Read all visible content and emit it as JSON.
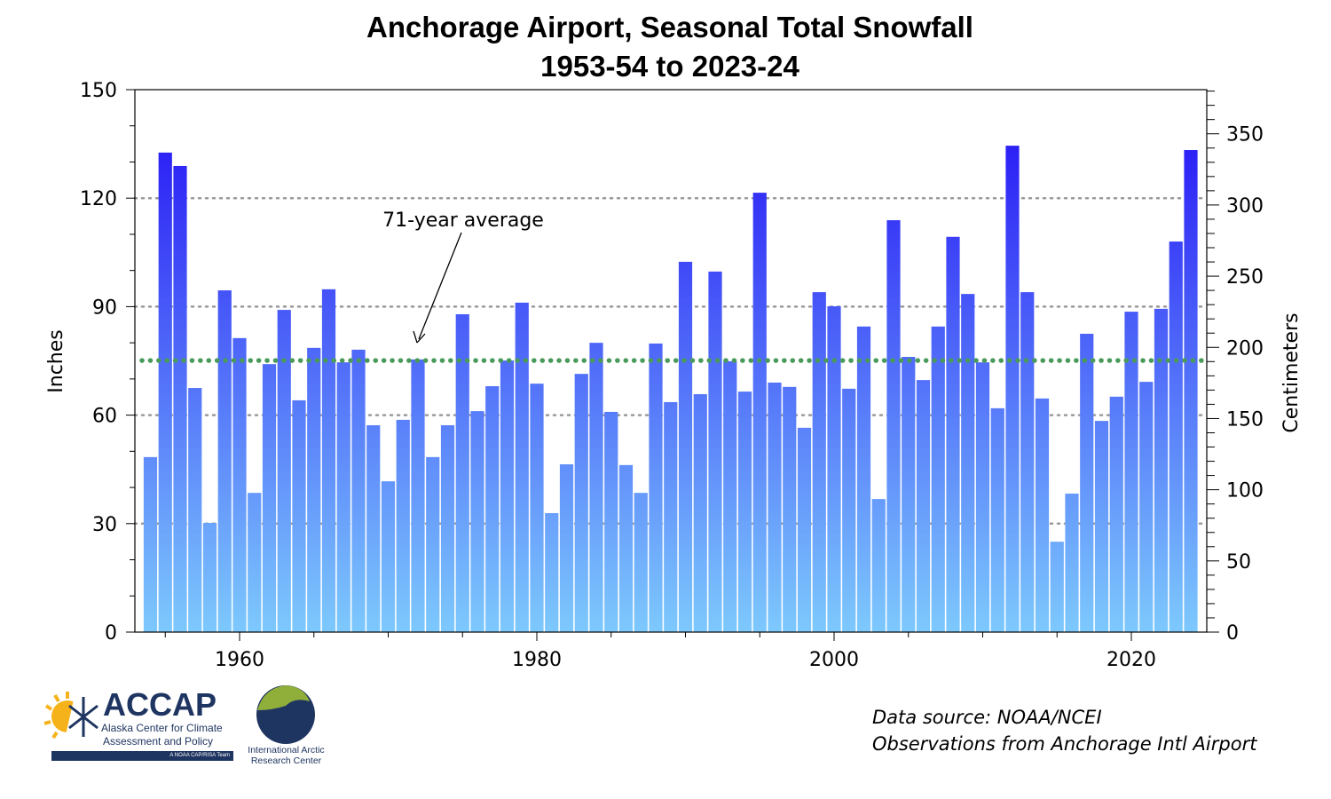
{
  "chart_data": {
    "type": "bar",
    "title": "Anchorage Airport, Seasonal Total Snowfall",
    "subtitle": "1953-54 to 2023-24",
    "ylabel": "Inches",
    "y2label": "Centimeters",
    "ylim": [
      0,
      150
    ],
    "y2lim": [
      0,
      381
    ],
    "yticks": [
      0,
      30,
      60,
      90,
      120,
      150
    ],
    "y2ticks": [
      0,
      50,
      100,
      150,
      200,
      250,
      300,
      350
    ],
    "xticks": [
      1960,
      1980,
      2000,
      2020
    ],
    "xlim": [
      1953,
      2025
    ],
    "grid": "horizontal dotted at 30, 60, 90, 120",
    "average": {
      "label": "71-year average",
      "value": 75.1,
      "color": "#4a9a5a"
    },
    "colors": {
      "bar_low": "#7dc9fd",
      "bar_high": "#2a1cf5",
      "grid": "#999999"
    },
    "x": [
      1954,
      1955,
      1956,
      1957,
      1958,
      1959,
      1960,
      1961,
      1962,
      1963,
      1964,
      1965,
      1966,
      1967,
      1968,
      1969,
      1970,
      1971,
      1972,
      1973,
      1974,
      1975,
      1976,
      1977,
      1978,
      1979,
      1980,
      1981,
      1982,
      1983,
      1984,
      1985,
      1986,
      1987,
      1988,
      1989,
      1990,
      1991,
      1992,
      1993,
      1994,
      1995,
      1996,
      1997,
      1998,
      1999,
      2000,
      2001,
      2002,
      2003,
      2004,
      2005,
      2006,
      2007,
      2008,
      2009,
      2010,
      2011,
      2012,
      2013,
      2014,
      2015,
      2016,
      2017,
      2018,
      2019,
      2020,
      2021,
      2022,
      2023,
      2024
    ],
    "values": [
      48.4,
      132.6,
      128.9,
      67.5,
      30.2,
      94.5,
      81.3,
      38.5,
      74.1,
      89.1,
      64.1,
      78.6,
      94.8,
      74.6,
      78.1,
      57.2,
      41.7,
      58.7,
      75.4,
      48.4,
      57.2,
      87.9,
      61.1,
      68.0,
      75.1,
      91.1,
      68.7,
      32.9,
      46.4,
      71.4,
      80.0,
      60.9,
      46.2,
      38.5,
      79.8,
      63.6,
      102.4,
      65.8,
      99.7,
      74.9,
      66.5,
      121.5,
      69.0,
      67.8,
      56.5,
      94.0,
      90.1,
      67.3,
      84.5,
      36.8,
      113.9,
      76.1,
      69.7,
      84.5,
      109.3,
      93.5,
      74.6,
      61.9,
      134.5,
      94.0,
      64.6,
      25.0,
      38.3,
      82.5,
      58.4,
      65.1,
      88.6,
      69.2,
      89.4,
      108.0,
      133.3
    ]
  },
  "footer": {
    "source_line1": "Data source: NOAA/NCEI",
    "source_line2": "Observations from Anchorage Intl Airport"
  },
  "logos": {
    "accap": {
      "name": "ACCAP",
      "line1": "Alaska Center for Climate",
      "line2": "Assessment and Policy",
      "tag": "A NOAA CAP/RISA Team"
    },
    "iarc": {
      "line1": "International Arctic",
      "line2": "Research Center"
    }
  }
}
